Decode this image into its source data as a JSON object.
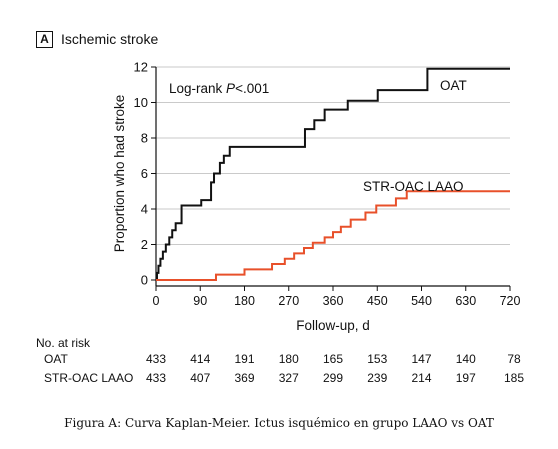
{
  "panel": {
    "letter": "A",
    "title": "Ischemic stroke"
  },
  "chart_data": {
    "type": "line",
    "step": true,
    "xlabel": "Follow-up, d",
    "ylabel": "Proportion who had stroke",
    "xlim": [
      0,
      720
    ],
    "ylim": [
      0,
      12
    ],
    "xticks": [
      0,
      90,
      180,
      270,
      360,
      450,
      540,
      630,
      720
    ],
    "yticks": [
      0,
      2,
      4,
      6,
      8,
      10,
      12
    ],
    "grid": "horizontal",
    "annotation": "Log-rank P<.001",
    "series": [
      {
        "name": "OAT",
        "color": "#111111",
        "x": [
          0,
          2,
          5,
          9,
          14,
          20,
          27,
          33,
          40,
          52,
          85,
          92,
          106,
          112,
          118,
          130,
          138,
          150,
          184,
          226,
          271,
          303,
          322,
          343,
          390,
          451,
          552,
          720
        ],
        "y": [
          0,
          0.4,
          0.8,
          1.2,
          1.6,
          2.0,
          2.4,
          2.8,
          3.2,
          4.2,
          4.2,
          4.5,
          4.5,
          5.5,
          6.0,
          6.6,
          7.0,
          7.5,
          7.5,
          7.5,
          7.5,
          8.5,
          9.0,
          9.6,
          10.1,
          10.7,
          11.9,
          11.9
        ]
      },
      {
        "name": "STR-OAC LAAO",
        "color": "#e8502a",
        "x": [
          0,
          66,
          122,
          180,
          236,
          262,
          281,
          301,
          319,
          343,
          360,
          376,
          396,
          426,
          448,
          488,
          510,
          598,
          720
        ],
        "y": [
          0,
          0,
          0.3,
          0.6,
          0.9,
          1.2,
          1.5,
          1.8,
          2.1,
          2.4,
          2.7,
          3.0,
          3.4,
          3.8,
          4.2,
          4.6,
          5.0,
          5.0,
          5.0
        ]
      }
    ]
  },
  "risk_table": {
    "title": "No. at risk",
    "x": [
      0,
      90,
      180,
      270,
      360,
      450,
      540,
      630,
      720
    ],
    "rows": [
      {
        "label": "OAT",
        "values": [
          "433",
          "414",
          "191",
          "180",
          "165",
          "153",
          "147",
          "140",
          "78"
        ]
      },
      {
        "label": "STR-OAC LAAO",
        "values": [
          "433",
          "407",
          "369",
          "327",
          "299",
          "239",
          "214",
          "197",
          "185"
        ]
      }
    ]
  },
  "caption": "Figura A: Curva Kaplan-Meier. Ictus isquémico en grupo LAAO vs OAT"
}
